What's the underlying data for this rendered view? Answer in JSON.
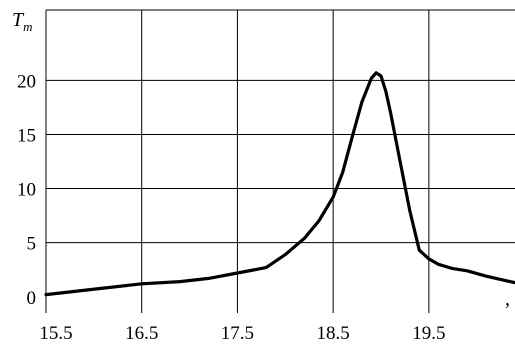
{
  "chart_data": {
    "type": "line",
    "title": "",
    "xlabel": ",",
    "ylabel_main": "T",
    "ylabel_sub": "m",
    "xlim": [
      15.5,
      20.4
    ],
    "ylim": [
      -1.5,
      26.5
    ],
    "x_ticks": [
      {
        "value": 15.5,
        "label": "15.5"
      },
      {
        "value": 16.5,
        "label": "16.5"
      },
      {
        "value": 17.5,
        "label": "17.5"
      },
      {
        "value": 18.5,
        "label": "18.5"
      },
      {
        "value": 19.5,
        "label": "19.5"
      }
    ],
    "y_ticks": [
      {
        "value": 0,
        "label": "0"
      },
      {
        "value": 5,
        "label": "5"
      },
      {
        "value": 10,
        "label": "10"
      },
      {
        "value": 15,
        "label": "15"
      },
      {
        "value": 20,
        "label": "20"
      }
    ],
    "grid": true,
    "legend": "none",
    "colors": {
      "line": "#000000",
      "grid": "#000000",
      "background": "#ffffff"
    },
    "series": [
      {
        "x": [
          15.5,
          15.8,
          16.1,
          16.5,
          16.9,
          17.2,
          17.5,
          17.8,
          18.0,
          18.2,
          18.35,
          18.5,
          18.6,
          18.7,
          18.8,
          18.9,
          18.95,
          19.0,
          19.05,
          19.1,
          19.2,
          19.3,
          19.4,
          19.5,
          19.6,
          19.75,
          19.9,
          20.1,
          20.4
        ],
        "y": [
          0.2,
          0.5,
          0.8,
          1.2,
          1.4,
          1.7,
          2.2,
          2.7,
          3.9,
          5.4,
          7.0,
          9.2,
          11.5,
          14.8,
          18.0,
          20.2,
          20.7,
          20.4,
          19.0,
          17.0,
          12.5,
          8.0,
          4.3,
          3.5,
          3.0,
          2.6,
          2.4,
          1.9,
          1.3
        ]
      }
    ]
  }
}
